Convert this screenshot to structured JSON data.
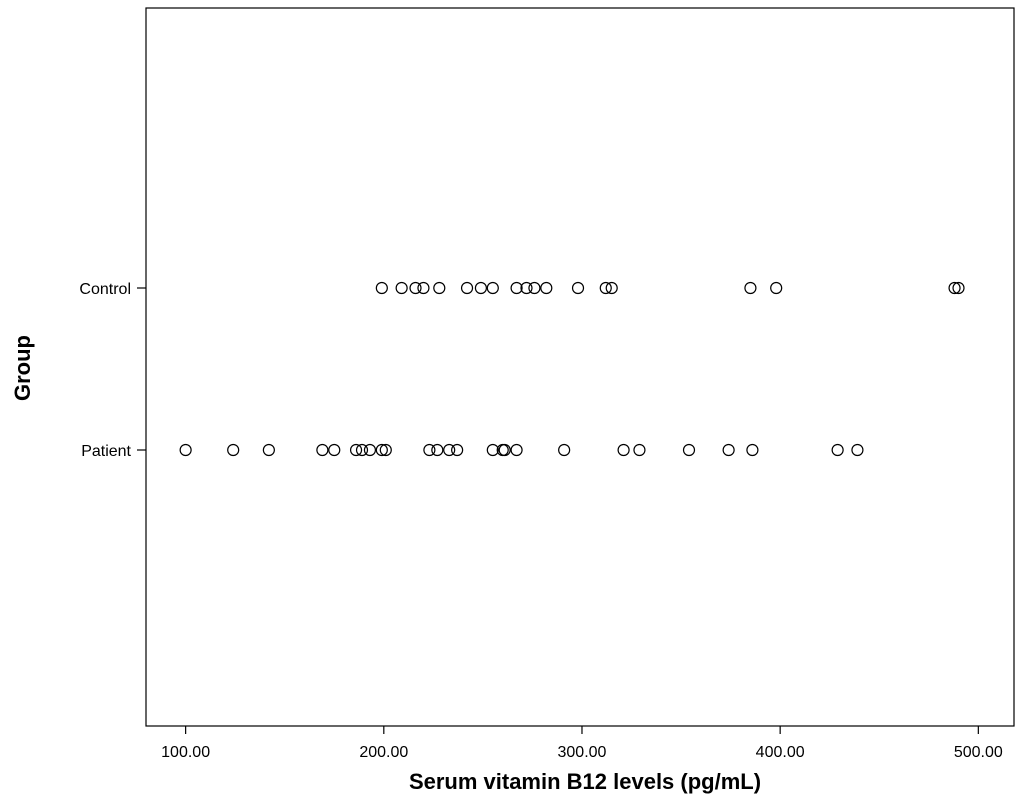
{
  "chart_data": {
    "type": "scatter",
    "title": "",
    "xlabel": "Serum vitamin B12 levels (pg/mL)",
    "ylabel": "Group",
    "xlim": [
      80,
      518
    ],
    "x_ticks": [
      "100.00",
      "200.00",
      "300.00",
      "400.00",
      "500.00"
    ],
    "categories": [
      "Control",
      "Patient"
    ],
    "grid": false,
    "legend": "none",
    "series": [
      {
        "category": "Control",
        "values": [
          199,
          209,
          216,
          220,
          228,
          242,
          249,
          255,
          267,
          272,
          276,
          282,
          298,
          312,
          315,
          385,
          398,
          488,
          490
        ]
      },
      {
        "category": "Patient",
        "values": [
          100,
          124,
          142,
          169,
          175,
          186,
          189,
          193,
          199,
          201,
          223,
          227,
          233,
          237,
          255,
          260,
          261,
          267,
          291,
          321,
          329,
          354,
          374,
          386,
          429,
          439
        ]
      }
    ]
  }
}
